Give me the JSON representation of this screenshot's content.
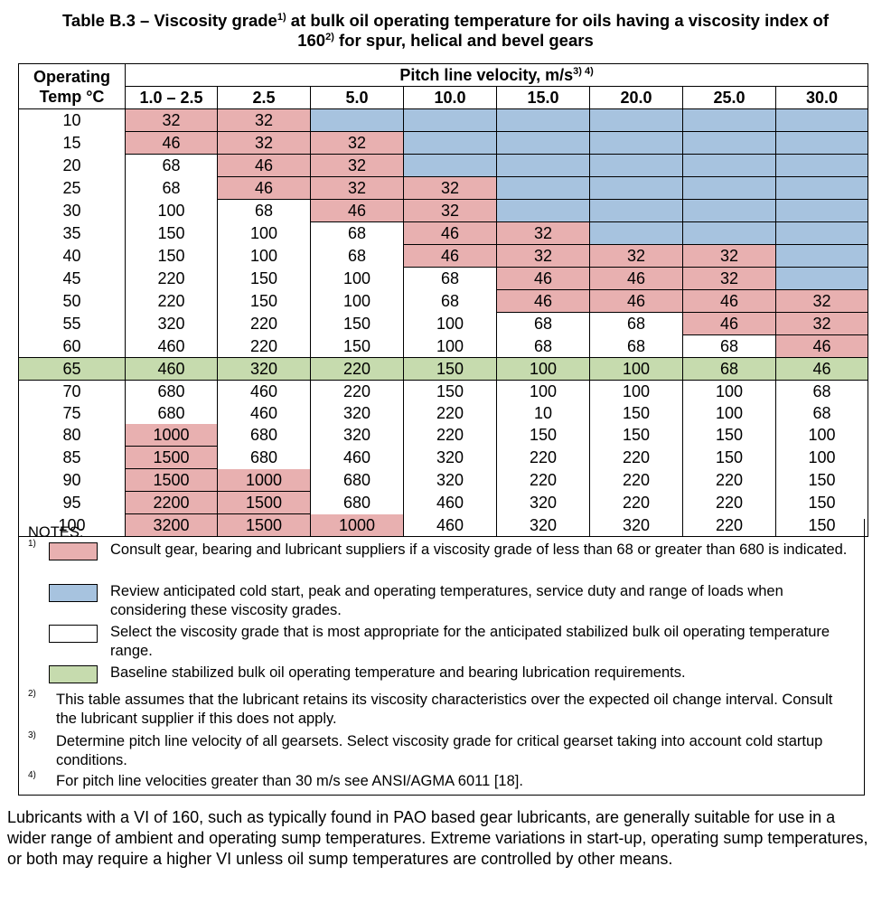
{
  "title": {
    "line1_a": "Table B.3 – Viscosity grade",
    "line1_sup": "1)",
    "line1_b": " at bulk oil operating temperature for oils having a viscosity index of",
    "line2_a": "160",
    "line2_sup": "2)",
    "line2_b": " for spur, helical and bevel gears"
  },
  "header": {
    "op_temp_line1": "Operating",
    "op_temp_line2": "Temp °C",
    "pitch_label": "Pitch line velocity, m/s",
    "pitch_sup": "3) 4)",
    "velocities": [
      "1.0 – 2.5",
      "2.5",
      "5.0",
      "10.0",
      "15.0",
      "20.0",
      "25.0",
      "30.0"
    ]
  },
  "colors": {
    "red": "#e8b0b0",
    "blue": "#a7c3df",
    "white": "#ffffff",
    "green": "#c6dbae"
  },
  "rows": [
    {
      "temp": "10",
      "vals": [
        "32",
        "32",
        "",
        "",
        "",
        "",
        "",
        ""
      ],
      "colors": [
        "r",
        "r",
        "b",
        "b",
        "b",
        "b",
        "b",
        "b"
      ]
    },
    {
      "temp": "15",
      "vals": [
        "46",
        "32",
        "32",
        "",
        "",
        "",
        "",
        ""
      ],
      "colors": [
        "r",
        "r",
        "r",
        "b",
        "b",
        "b",
        "b",
        "b"
      ]
    },
    {
      "temp": "20",
      "vals": [
        "68",
        "46",
        "32",
        "",
        "",
        "",
        "",
        ""
      ],
      "colors": [
        "w",
        "r",
        "r",
        "b",
        "b",
        "b",
        "b",
        "b"
      ]
    },
    {
      "temp": "25",
      "vals": [
        "68",
        "46",
        "32",
        "32",
        "",
        "",
        "",
        ""
      ],
      "colors": [
        "w",
        "r",
        "r",
        "r",
        "b",
        "b",
        "b",
        "b"
      ]
    },
    {
      "temp": "30",
      "vals": [
        "100",
        "68",
        "46",
        "32",
        "",
        "",
        "",
        ""
      ],
      "colors": [
        "w",
        "w",
        "r",
        "r",
        "b",
        "b",
        "b",
        "b"
      ]
    },
    {
      "temp": "35",
      "vals": [
        "150",
        "100",
        "68",
        "46",
        "32",
        "",
        "",
        ""
      ],
      "colors": [
        "w",
        "w",
        "w",
        "r",
        "r",
        "b",
        "b",
        "b"
      ]
    },
    {
      "temp": "40",
      "vals": [
        "150",
        "100",
        "68",
        "46",
        "32",
        "32",
        "32",
        ""
      ],
      "colors": [
        "w",
        "w",
        "w",
        "r",
        "r",
        "r",
        "r",
        "b"
      ]
    },
    {
      "temp": "45",
      "vals": [
        "220",
        "150",
        "100",
        "68",
        "46",
        "46",
        "32",
        ""
      ],
      "colors": [
        "w",
        "w",
        "w",
        "w",
        "r",
        "r",
        "r",
        "b"
      ]
    },
    {
      "temp": "50",
      "vals": [
        "220",
        "150",
        "100",
        "68",
        "46",
        "46",
        "46",
        "32"
      ],
      "colors": [
        "w",
        "w",
        "w",
        "w",
        "r",
        "r",
        "r",
        "r"
      ]
    },
    {
      "temp": "55",
      "vals": [
        "320",
        "220",
        "150",
        "100",
        "68",
        "68",
        "46",
        "32"
      ],
      "colors": [
        "w",
        "w",
        "w",
        "w",
        "w",
        "w",
        "r",
        "r"
      ]
    },
    {
      "temp": "60",
      "vals": [
        "460",
        "220",
        "150",
        "100",
        "68",
        "68",
        "68",
        "46"
      ],
      "colors": [
        "w",
        "w",
        "w",
        "w",
        "w",
        "w",
        "w",
        "r"
      ]
    },
    {
      "temp": "65",
      "vals": [
        "460",
        "320",
        "220",
        "150",
        "100",
        "100",
        "68",
        "46"
      ],
      "colors": [
        "g",
        "g",
        "g",
        "g",
        "g",
        "g",
        "g",
        "g"
      ]
    },
    {
      "temp": "70",
      "vals": [
        "680",
        "460",
        "220",
        "150",
        "100",
        "100",
        "100",
        "68"
      ],
      "colors": [
        "w",
        "w",
        "w",
        "w",
        "w",
        "w",
        "w",
        "w"
      ]
    },
    {
      "temp": "75",
      "vals": [
        "680",
        "460",
        "320",
        "220",
        "10",
        "150",
        "100",
        "68"
      ],
      "colors": [
        "w",
        "w",
        "w",
        "w",
        "w",
        "w",
        "w",
        "w"
      ]
    },
    {
      "temp": "80",
      "vals": [
        "1000",
        "680",
        "320",
        "220",
        "150",
        "150",
        "150",
        "100"
      ],
      "colors": [
        "r",
        "w",
        "w",
        "w",
        "w",
        "w",
        "w",
        "w"
      ]
    },
    {
      "temp": "85",
      "vals": [
        "1500",
        "680",
        "460",
        "320",
        "220",
        "220",
        "150",
        "100"
      ],
      "colors": [
        "r",
        "w",
        "w",
        "w",
        "w",
        "w",
        "w",
        "w"
      ]
    },
    {
      "temp": "90",
      "vals": [
        "1500",
        "1000",
        "680",
        "320",
        "220",
        "220",
        "220",
        "150"
      ],
      "colors": [
        "r",
        "r",
        "w",
        "w",
        "w",
        "w",
        "w",
        "w"
      ]
    },
    {
      "temp": "95",
      "vals": [
        "2200",
        "1500",
        "680",
        "460",
        "320",
        "220",
        "220",
        "150"
      ],
      "colors": [
        "r",
        "r",
        "w",
        "w",
        "w",
        "w",
        "w",
        "w"
      ]
    },
    {
      "temp": "100",
      "vals": [
        "3200",
        "1500",
        "1000",
        "460",
        "320",
        "320",
        "220",
        "150"
      ],
      "colors": [
        "r",
        "r",
        "r",
        "w",
        "w",
        "w",
        "w",
        "w"
      ]
    }
  ],
  "notes": {
    "label": "NOTES:",
    "note1_num": "1)",
    "legend": [
      {
        "color": "red",
        "text": "Consult gear, bearing and lubricant suppliers if a viscosity grade of less than 68 or greater than 680 is indicated."
      },
      {
        "color": "blue",
        "text": "Review anticipated cold start, peak and operating temperatures, service duty and range of loads when considering these viscosity grades."
      },
      {
        "color": "white",
        "text": "Select the viscosity grade that is most appropriate for the anticipated stabilized bulk oil operating temperature range."
      },
      {
        "color": "green",
        "text": "Baseline stabilized bulk oil operating temperature and bearing lubrication requirements."
      }
    ],
    "footnotes": [
      {
        "num": "2)",
        "text": "This table assumes that the lubricant retains its viscosity characteristics over the expected oil change interval. Consult the lubricant supplier if this does not apply."
      },
      {
        "num": "3)",
        "text": "Determine pitch line velocity of all gearsets. Select viscosity grade for critical gearset taking into account cold startup conditions."
      },
      {
        "num": "4)",
        "text": "For pitch line velocities greater than 30 m/s see ANSI/AGMA 6011 [18]."
      }
    ]
  },
  "paragraph": "Lubricants with a VI of 160, such as typically found in PAO based gear lubricants, are generally suitable for use in a wider range of ambient and operating sump temperatures. Extreme variations in start-up, operating sump temperatures, or both may require a higher VI unless oil sump temperatures are controlled by other means."
}
